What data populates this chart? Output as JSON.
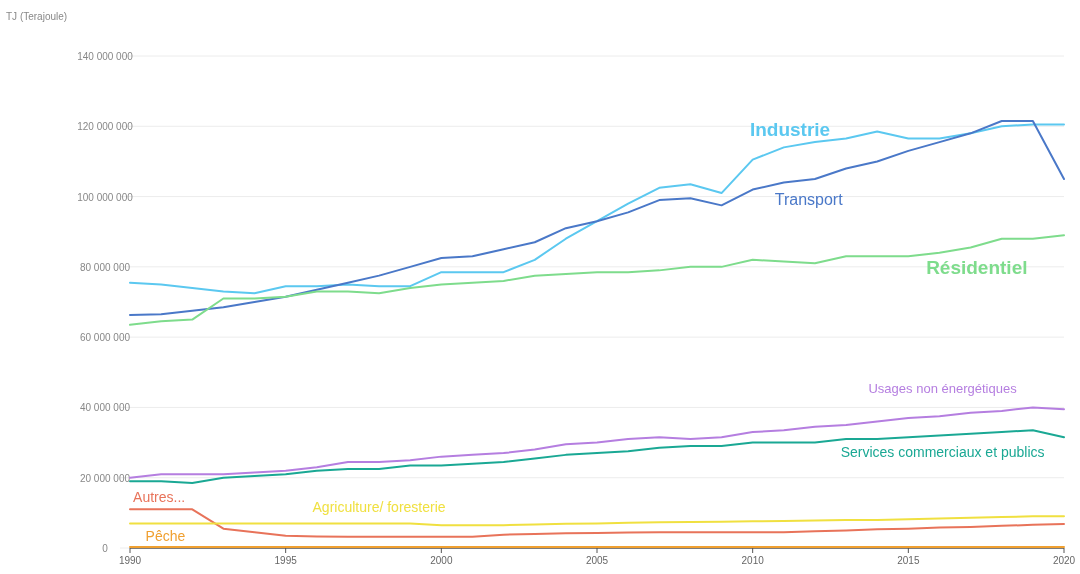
{
  "chart_data": {
    "type": "line",
    "ylabel": "TJ (Terajoule)",
    "x": [
      1990,
      1991,
      1992,
      1993,
      1994,
      1995,
      1996,
      1997,
      1998,
      1999,
      2000,
      2001,
      2002,
      2003,
      2004,
      2005,
      2006,
      2007,
      2008,
      2009,
      2010,
      2011,
      2012,
      2013,
      2014,
      2015,
      2016,
      2017,
      2018,
      2019,
      2020
    ],
    "xlim": [
      1990,
      2020
    ],
    "xticks": [
      1990,
      1995,
      2000,
      2005,
      2010,
      2015,
      2020
    ],
    "ylim": [
      0,
      140000000
    ],
    "yticks": [
      {
        "value": 0,
        "label": "0"
      },
      {
        "value": 20000000,
        "label": "20 000 000"
      },
      {
        "value": 40000000,
        "label": "40 000 000"
      },
      {
        "value": 60000000,
        "label": "60 000 000"
      },
      {
        "value": 80000000,
        "label": "80 000 000"
      },
      {
        "value": 100000000,
        "label": "100 000 000"
      },
      {
        "value": 120000000,
        "label": "120 000 000"
      },
      {
        "value": 140000000,
        "label": "140 000 000"
      }
    ],
    "grid": "y",
    "series": [
      {
        "name": "Industrie",
        "color": "#5bc8f0",
        "values": [
          75500000,
          75000000,
          74000000,
          73000000,
          72500000,
          74500000,
          74500000,
          75000000,
          74500000,
          74500000,
          78500000,
          78500000,
          78500000,
          82000000,
          88000000,
          93000000,
          98000000,
          102500000,
          103500000,
          101000000,
          110500000,
          114000000,
          115500000,
          116500000,
          118500000,
          116500000,
          116500000,
          118000000,
          120000000,
          120500000,
          120500000
        ]
      },
      {
        "name": "Transport",
        "color": "#4a78c8",
        "values": [
          66300000,
          66500000,
          67500000,
          68500000,
          70000000,
          71500000,
          73500000,
          75500000,
          77500000,
          80000000,
          82500000,
          83000000,
          85000000,
          87000000,
          91000000,
          93000000,
          95500000,
          99000000,
          99500000,
          97500000,
          102000000,
          104000000,
          105000000,
          108000000,
          110000000,
          113000000,
          115500000,
          118000000,
          121500000,
          121500000,
          105000000
        ]
      },
      {
        "name": "Résidentiel",
        "color": "#7edc8c",
        "values": [
          63500000,
          64500000,
          65000000,
          71000000,
          71000000,
          71500000,
          73000000,
          73000000,
          72500000,
          74000000,
          75000000,
          75500000,
          76000000,
          77500000,
          78000000,
          78500000,
          78500000,
          79000000,
          80000000,
          80000000,
          82000000,
          81500000,
          81000000,
          83000000,
          83000000,
          83000000,
          84000000,
          85500000,
          88000000,
          88000000,
          89000000
        ]
      },
      {
        "name": "Usages non énergétiques",
        "color": "#b57ee0",
        "values": [
          20000000,
          21000000,
          21000000,
          21000000,
          21500000,
          22000000,
          23000000,
          24500000,
          24500000,
          25000000,
          26000000,
          26500000,
          27000000,
          28000000,
          29500000,
          30000000,
          31000000,
          31500000,
          31000000,
          31500000,
          33000000,
          33500000,
          34500000,
          35000000,
          36000000,
          37000000,
          37500000,
          38500000,
          39000000,
          40000000,
          39500000
        ]
      },
      {
        "name": "Services commerciaux et publics",
        "color": "#1aa894",
        "values": [
          19000000,
          19000000,
          18500000,
          20000000,
          20500000,
          21000000,
          22000000,
          22500000,
          22500000,
          23500000,
          23500000,
          24000000,
          24500000,
          25500000,
          26500000,
          27000000,
          27500000,
          28500000,
          29000000,
          29000000,
          30000000,
          30000000,
          30000000,
          31000000,
          31000000,
          31500000,
          32000000,
          32500000,
          33000000,
          33500000,
          31500000
        ]
      },
      {
        "name": "Autres...",
        "color": "#e8735a",
        "values": [
          11000000,
          11000000,
          11000000,
          5500000,
          4500000,
          3500000,
          3300000,
          3200000,
          3200000,
          3200000,
          3200000,
          3200000,
          3800000,
          4000000,
          4200000,
          4300000,
          4400000,
          4500000,
          4500000,
          4500000,
          4500000,
          4500000,
          4800000,
          5000000,
          5300000,
          5500000,
          5800000,
          6000000,
          6300000,
          6600000,
          6800000
        ]
      },
      {
        "name": "Agriculture/ foresterie",
        "color": "#f0e040",
        "values": [
          7000000,
          7000000,
          7000000,
          7000000,
          7000000,
          7000000,
          7000000,
          7000000,
          7000000,
          7000000,
          6500000,
          6500000,
          6500000,
          6700000,
          6900000,
          7000000,
          7200000,
          7300000,
          7400000,
          7500000,
          7600000,
          7700000,
          7800000,
          8000000,
          8000000,
          8200000,
          8400000,
          8600000,
          8800000,
          9000000,
          9000000
        ]
      },
      {
        "name": "Pêche",
        "color": "#f0a030",
        "values": [
          300000,
          300000,
          300000,
          300000,
          300000,
          300000,
          300000,
          300000,
          300000,
          300000,
          300000,
          300000,
          300000,
          300000,
          300000,
          300000,
          300000,
          300000,
          300000,
          300000,
          300000,
          300000,
          300000,
          300000,
          300000,
          300000,
          300000,
          300000,
          300000,
          300000,
          300000
        ]
      }
    ]
  }
}
